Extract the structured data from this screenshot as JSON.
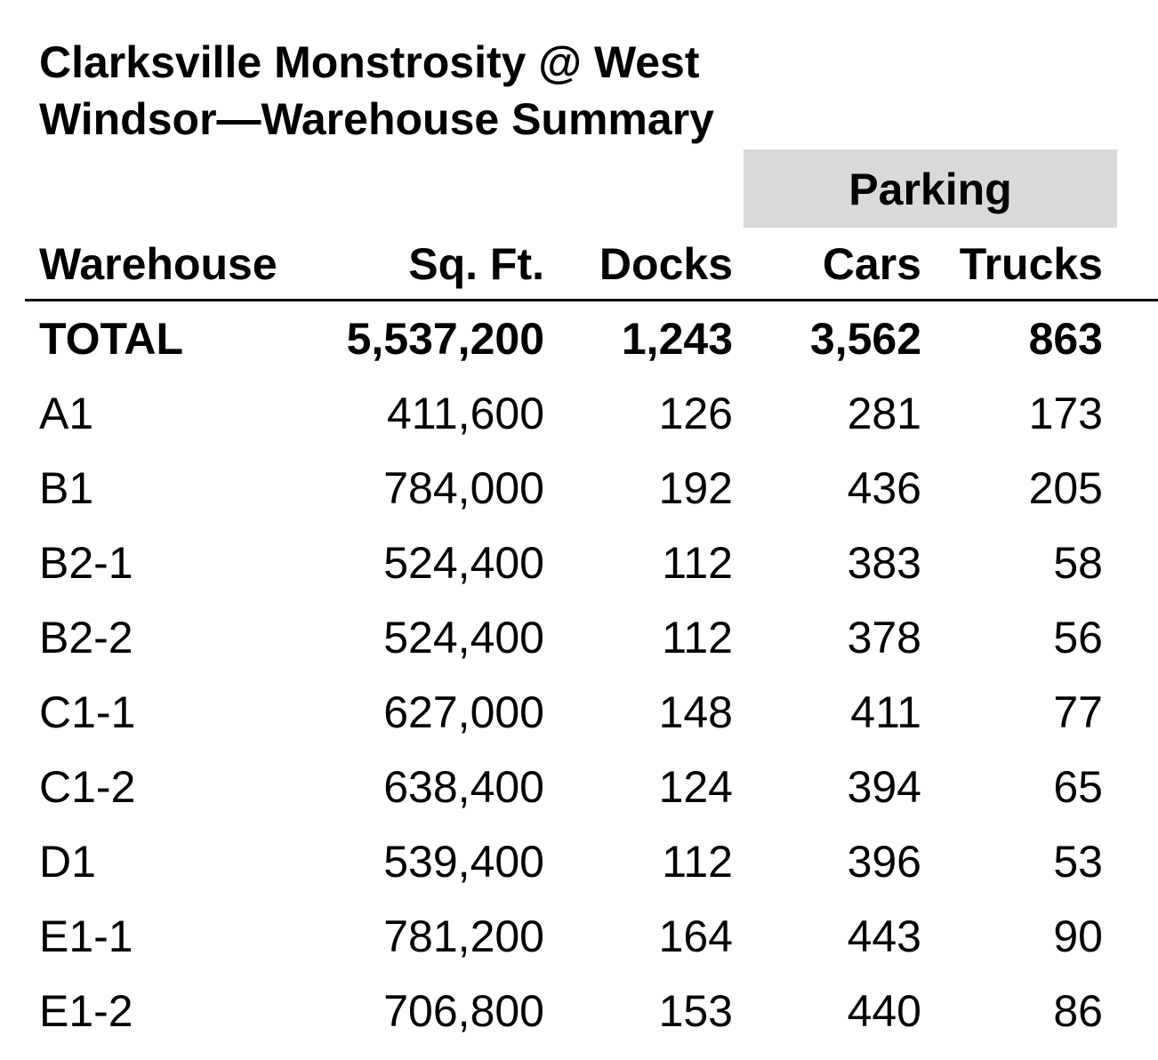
{
  "title_line1": "Clarksville Monstrosity @ West",
  "title_line2": "Windsor—Warehouse Summary",
  "group_header": "Parking",
  "group_band_color": "#d9d9d9",
  "columns": {
    "warehouse": "Warehouse",
    "sqft": "Sq. Ft.",
    "docks": "Docks",
    "cars": "Cars",
    "trucks": "Trucks"
  },
  "total": {
    "label": "TOTAL",
    "sqft": "5,537,200",
    "docks": "1,243",
    "cars": "3,562",
    "trucks": "863"
  },
  "rows": [
    {
      "warehouse": "A1",
      "sqft": "411,600",
      "docks": "126",
      "cars": "281",
      "trucks": "173"
    },
    {
      "warehouse": "B1",
      "sqft": "784,000",
      "docks": "192",
      "cars": "436",
      "trucks": "205"
    },
    {
      "warehouse": "B2-1",
      "sqft": "524,400",
      "docks": "112",
      "cars": "383",
      "trucks": "58"
    },
    {
      "warehouse": "B2-2",
      "sqft": "524,400",
      "docks": "112",
      "cars": "378",
      "trucks": "56"
    },
    {
      "warehouse": "C1-1",
      "sqft": "627,000",
      "docks": "148",
      "cars": "411",
      "trucks": "77"
    },
    {
      "warehouse": "C1-2",
      "sqft": "638,400",
      "docks": "124",
      "cars": "394",
      "trucks": "65"
    },
    {
      "warehouse": "D1",
      "sqft": "539,400",
      "docks": "112",
      "cars": "396",
      "trucks": "53"
    },
    {
      "warehouse": "E1-1",
      "sqft": "781,200",
      "docks": "164",
      "cars": "443",
      "trucks": "90"
    },
    {
      "warehouse": "E1-2",
      "sqft": "706,800",
      "docks": "153",
      "cars": "440",
      "trucks": "86"
    }
  ]
}
